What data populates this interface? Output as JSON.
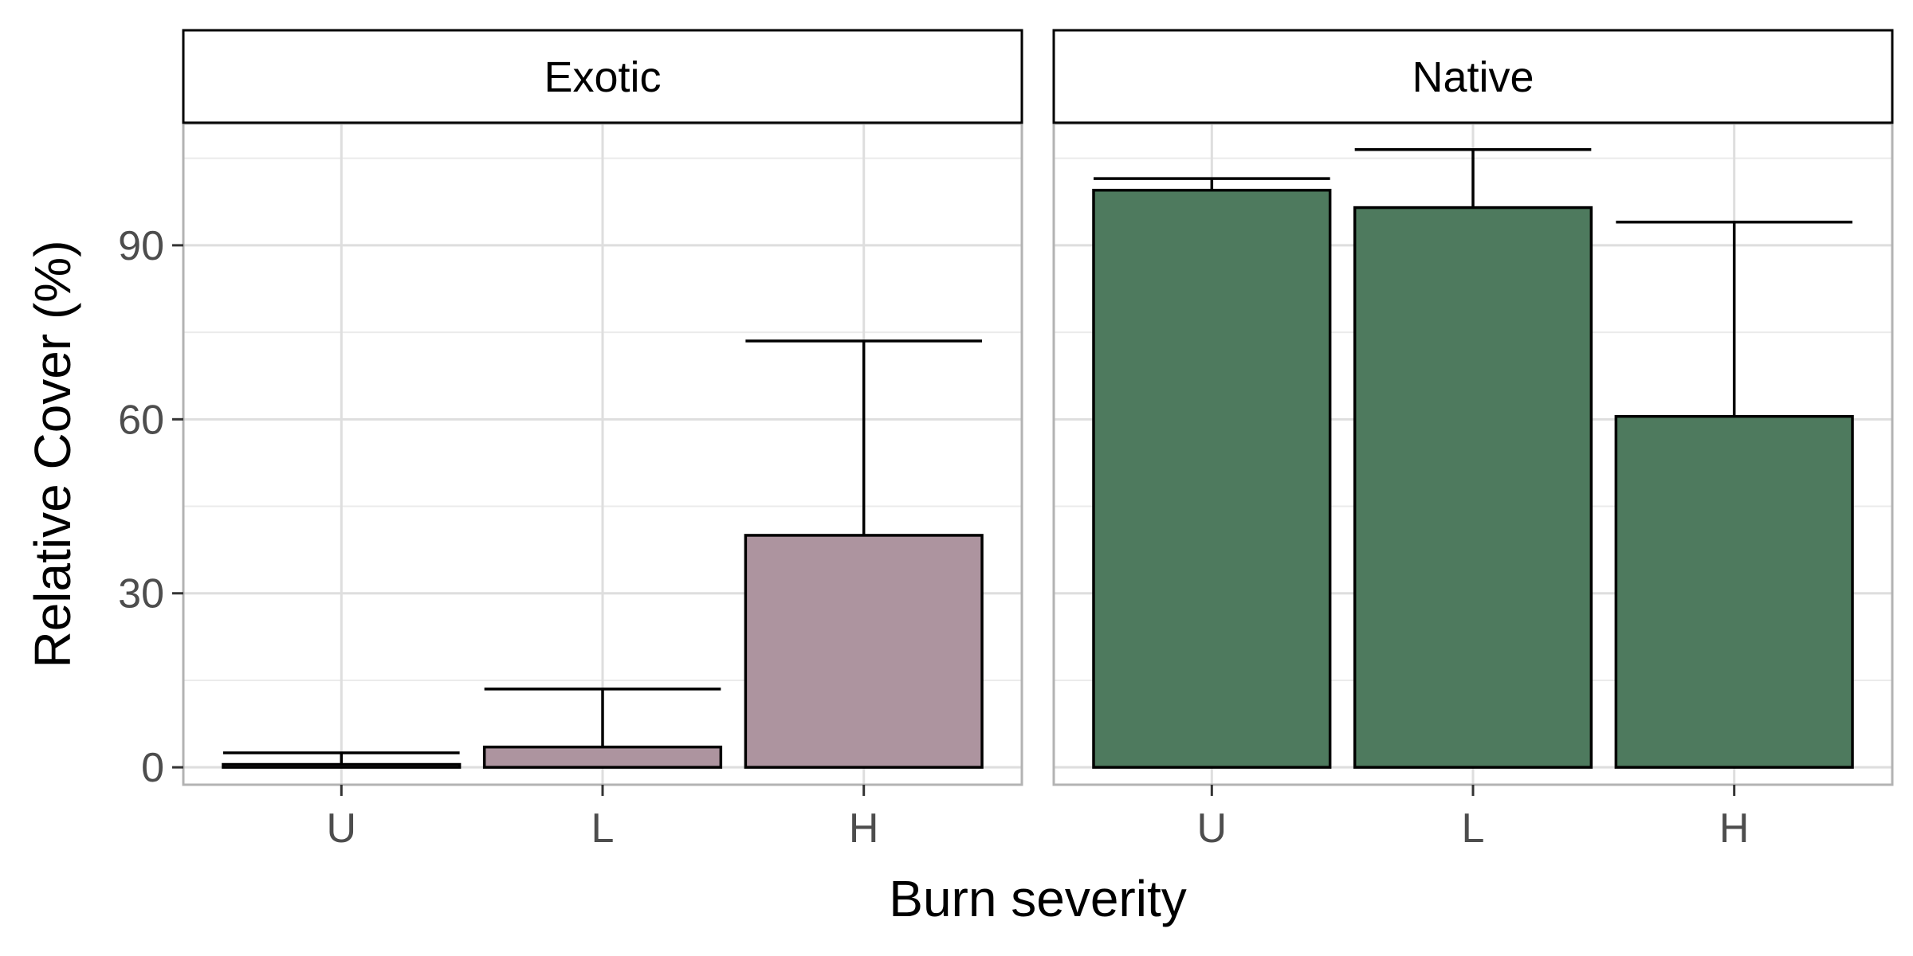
{
  "chart_data": {
    "type": "bar",
    "xlabel": "Burn severity",
    "ylabel": "Relative Cover (%)",
    "ylim": [
      -3,
      111
    ],
    "yticks": [
      0,
      30,
      60,
      90
    ],
    "categories": [
      "U",
      "L",
      "H"
    ],
    "grid": true,
    "legend": "none",
    "panels": [
      {
        "facet": "Exotic",
        "color": "#AD949F",
        "values": [
          0.5,
          3.5,
          40
        ],
        "error_upper": [
          2.5,
          13.5,
          73.5
        ]
      },
      {
        "facet": "Native",
        "color": "#4E7A5E",
        "values": [
          99.5,
          96.5,
          60.5
        ],
        "error_upper": [
          101.5,
          106.5,
          94
        ]
      }
    ]
  }
}
